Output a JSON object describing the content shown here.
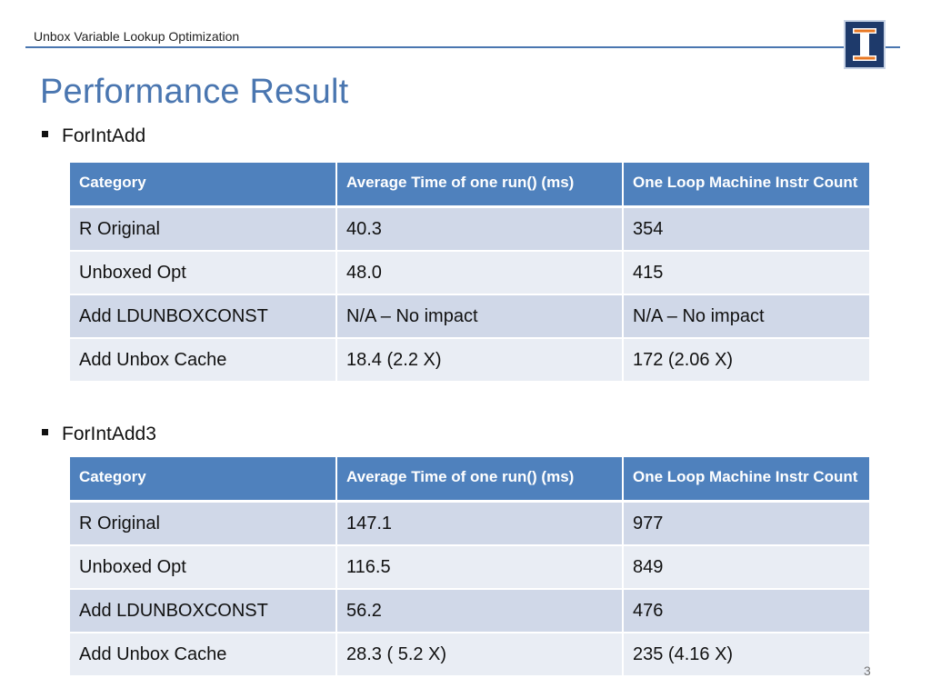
{
  "header": {
    "title": "Unbox Variable Lookup Optimization"
  },
  "page_title": "Performance Result",
  "sections": [
    {
      "bullet": "ForIntAdd",
      "columns": [
        "Category",
        "Average Time of one run() (ms)",
        "One Loop Machine Instr Count"
      ],
      "rows": [
        [
          "R Original",
          "40.3",
          "354"
        ],
        [
          "Unboxed Opt",
          "48.0",
          "415"
        ],
        [
          "Add LDUNBOXCONST",
          "N/A – No impact",
          "N/A – No impact"
        ],
        [
          "Add Unbox Cache",
          "18.4 (2.2 X)",
          "172 (2.06 X)"
        ]
      ]
    },
    {
      "bullet": "ForIntAdd3",
      "columns": [
        "Category",
        "Average Time of one run() (ms)",
        "One Loop Machine Instr Count"
      ],
      "rows": [
        [
          "R Original",
          "147.1",
          "977"
        ],
        [
          "Unboxed Opt",
          "116.5",
          "849"
        ],
        [
          "Add LDUNBOXCONST",
          "56.2",
          "476"
        ],
        [
          "Add Unbox Cache",
          "28.3 ( 5.2 X)",
          "235 (4.16 X)"
        ]
      ]
    }
  ],
  "page_number": "3",
  "colors": {
    "accent": "#4a76b0",
    "table_header": "#4f81bd",
    "row_odd": "#d0d8e8",
    "row_even": "#e9edf4",
    "logo": "#1e3a6b"
  },
  "icons": {
    "logo": "university-block-i-logo"
  }
}
